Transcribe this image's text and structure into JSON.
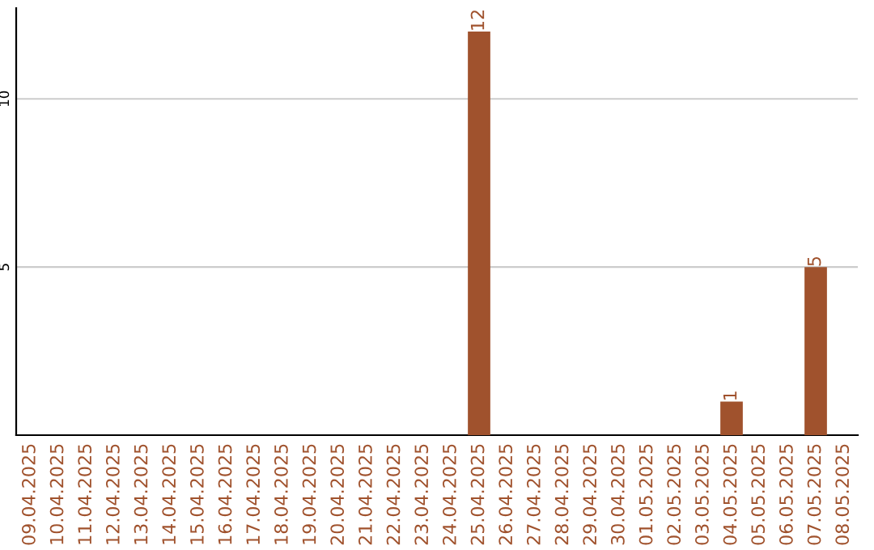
{
  "chart_data": {
    "type": "bar",
    "categories": [
      "09.04.2025",
      "10.04.2025",
      "11.04.2025",
      "12.04.2025",
      "13.04.2025",
      "14.04.2025",
      "15.04.2025",
      "16.04.2025",
      "17.04.2025",
      "18.04.2025",
      "19.04.2025",
      "20.04.2025",
      "21.04.2025",
      "22.04.2025",
      "23.04.2025",
      "24.04.2025",
      "25.04.2025",
      "26.04.2025",
      "27.04.2025",
      "28.04.2025",
      "29.04.2025",
      "30.04.2025",
      "01.05.2025",
      "02.05.2025",
      "03.05.2025",
      "04.05.2025",
      "05.05.2025",
      "06.05.2025",
      "07.05.2025",
      "08.05.2025"
    ],
    "values": [
      0,
      0,
      0,
      0,
      0,
      0,
      0,
      0,
      0,
      0,
      0,
      0,
      0,
      0,
      0,
      0,
      12,
      0,
      0,
      0,
      0,
      0,
      0,
      0,
      0,
      1,
      0,
      0,
      5,
      0
    ],
    "value_labels": [
      null,
      null,
      null,
      null,
      null,
      null,
      null,
      null,
      null,
      null,
      null,
      null,
      null,
      null,
      null,
      null,
      "12",
      null,
      null,
      null,
      null,
      null,
      null,
      null,
      null,
      "1",
      null,
      null,
      "5",
      null
    ],
    "color": "#a0522d",
    "ylim": [
      0,
      12.7
    ],
    "yticks": [
      5,
      10
    ],
    "grid": "y"
  }
}
